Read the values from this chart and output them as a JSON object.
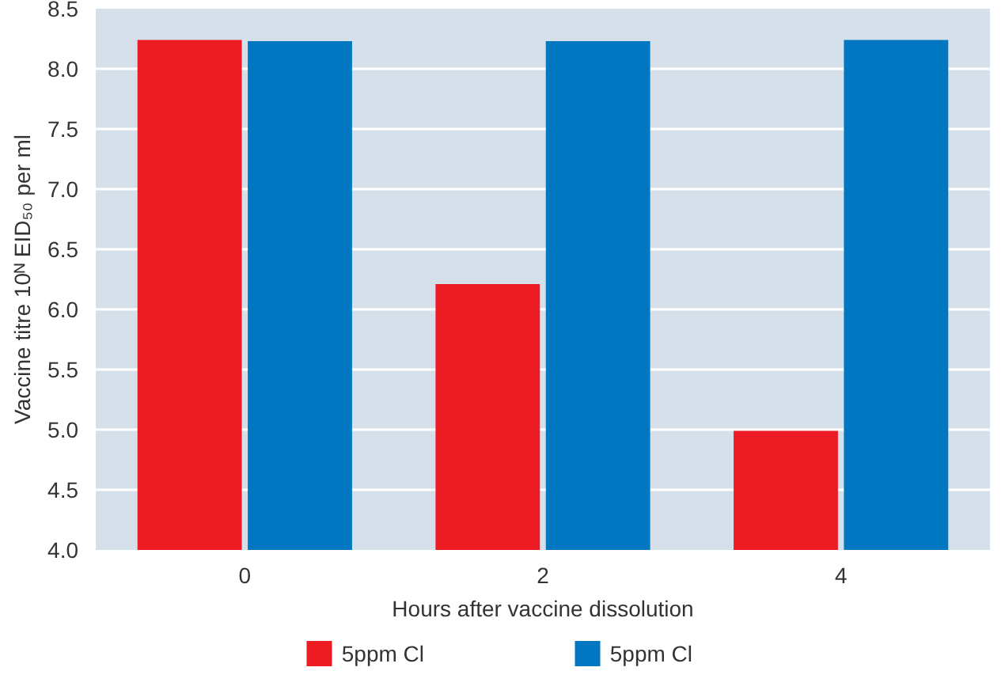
{
  "chart_data": {
    "type": "bar",
    "xlabel": "Hours after vaccine dissolution",
    "ylabel": "Vaccine titre 10ᴺ EID₅₀ per ml",
    "categories": [
      "0",
      "2",
      "4"
    ],
    "series": [
      {
        "name": "5ppm Cl",
        "color": "#ed1c24",
        "values": [
          8.24,
          6.21,
          4.99
        ]
      },
      {
        "name": "5ppm Cl",
        "color": "#0077c0",
        "values": [
          8.23,
          8.23,
          8.24
        ]
      }
    ],
    "ylim": [
      4.0,
      8.5
    ],
    "yticks": [
      {
        "value": 4.0,
        "label": "4.0"
      },
      {
        "value": 4.5,
        "label": "4.5"
      },
      {
        "value": 5.0,
        "label": "5.0"
      },
      {
        "value": 5.5,
        "label": "5.5"
      },
      {
        "value": 6.0,
        "label": "6.0"
      },
      {
        "value": 6.5,
        "label": "6.5"
      },
      {
        "value": 7.0,
        "label": "7.0"
      },
      {
        "value": 7.5,
        "label": "7.5"
      },
      {
        "value": 8.0,
        "label": "8.0"
      },
      {
        "value": 8.5,
        "label": "8.5"
      }
    ],
    "grid": "y",
    "legend": "bottom"
  }
}
